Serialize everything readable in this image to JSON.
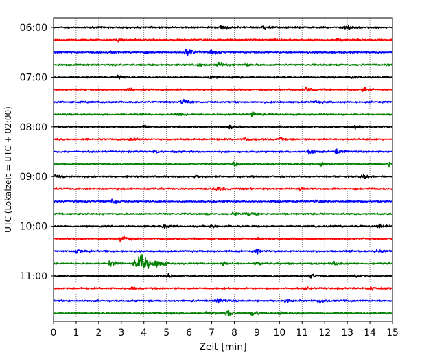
{
  "chart_data": {
    "type": "line",
    "title": "",
    "xlabel": "Zeit  [min]",
    "ylabel": "UTC (Lokalzeit = UTC + 02:00)",
    "xlim": [
      0,
      15
    ],
    "x_ticks": [
      0,
      1,
      2,
      3,
      4,
      5,
      6,
      7,
      8,
      9,
      10,
      11,
      12,
      13,
      14,
      15
    ],
    "x_tick_labels": [
      "0",
      "1",
      "2",
      "3",
      "4",
      "5",
      "6",
      "7",
      "8",
      "9",
      "10",
      "11",
      "12",
      "13",
      "14",
      "15"
    ],
    "y_tick_labels": [
      "06:00",
      "07:00",
      "08:00",
      "09:00",
      "10:00",
      "11:00"
    ],
    "y_tick_rows": [
      0,
      4,
      8,
      12,
      16,
      20
    ],
    "grid": "vertical-dotted",
    "legend": "none",
    "series_colors": [
      "#000000",
      "#ff0000",
      "#0000ff",
      "#008000"
    ],
    "traces": [
      {
        "start": "06:00",
        "color": "#000000",
        "events": [
          {
            "t": 7.4,
            "a": 1.6
          },
          {
            "t": 9.3,
            "a": 1.2
          },
          {
            "t": 12.9,
            "a": 2.0
          }
        ]
      },
      {
        "start": "06:15",
        "color": "#ff0000",
        "events": [
          {
            "t": 2.9,
            "a": 1.0
          },
          {
            "t": 9.8,
            "a": 1.0
          },
          {
            "t": 12.6,
            "a": 1.0
          }
        ]
      },
      {
        "start": "06:30",
        "color": "#0000ff",
        "events": [
          {
            "t": 2.6,
            "a": 1.0
          },
          {
            "t": 5.9,
            "a": 2.5
          },
          {
            "t": 7.0,
            "a": 1.5
          }
        ]
      },
      {
        "start": "06:45",
        "color": "#008000",
        "events": [
          {
            "t": 6.4,
            "a": 1.0
          },
          {
            "t": 7.3,
            "a": 1.5
          },
          {
            "t": 8.5,
            "a": 1.0
          }
        ]
      },
      {
        "start": "07:00",
        "color": "#000000",
        "events": [
          {
            "t": 2.9,
            "a": 1.5
          },
          {
            "t": 6.9,
            "a": 1.2
          },
          {
            "t": 13.2,
            "a": 1.0
          }
        ]
      },
      {
        "start": "07:15",
        "color": "#ff0000",
        "events": [
          {
            "t": 3.3,
            "a": 1.0
          },
          {
            "t": 11.2,
            "a": 1.5
          },
          {
            "t": 13.7,
            "a": 1.5
          }
        ]
      },
      {
        "start": "07:30",
        "color": "#0000ff",
        "events": [
          {
            "t": 5.7,
            "a": 2.0
          },
          {
            "t": 11.6,
            "a": 1.0
          }
        ]
      },
      {
        "start": "07:45",
        "color": "#008000",
        "events": [
          {
            "t": 5.5,
            "a": 1.0
          },
          {
            "t": 8.8,
            "a": 2.0
          }
        ]
      },
      {
        "start": "08:00",
        "color": "#000000",
        "events": [
          {
            "t": 4.0,
            "a": 1.3
          },
          {
            "t": 7.8,
            "a": 1.0
          },
          {
            "t": 13.3,
            "a": 1.5
          }
        ]
      },
      {
        "start": "08:15",
        "color": "#ff0000",
        "events": [
          {
            "t": 3.4,
            "a": 1.3
          },
          {
            "t": 8.5,
            "a": 1.5
          },
          {
            "t": 10.0,
            "a": 1.0
          }
        ]
      },
      {
        "start": "08:30",
        "color": "#0000ff",
        "events": [
          {
            "t": 4.5,
            "a": 1.0
          },
          {
            "t": 11.3,
            "a": 2.0
          },
          {
            "t": 12.5,
            "a": 1.5
          }
        ]
      },
      {
        "start": "08:45",
        "color": "#008000",
        "events": [
          {
            "t": 8.0,
            "a": 1.2
          },
          {
            "t": 11.8,
            "a": 1.8
          },
          {
            "t": 14.9,
            "a": 1.8
          }
        ]
      },
      {
        "start": "09:00",
        "color": "#000000",
        "events": [
          {
            "t": 0.1,
            "a": 1.5
          },
          {
            "t": 6.3,
            "a": 1.0
          },
          {
            "t": 13.7,
            "a": 1.2
          }
        ]
      },
      {
        "start": "09:15",
        "color": "#ff0000",
        "events": [
          {
            "t": 7.2,
            "a": 1.6
          },
          {
            "t": 10.9,
            "a": 1.0
          }
        ]
      },
      {
        "start": "09:30",
        "color": "#0000ff",
        "events": [
          {
            "t": 2.6,
            "a": 1.5
          },
          {
            "t": 11.6,
            "a": 1.0
          }
        ]
      },
      {
        "start": "09:45",
        "color": "#008000",
        "events": [
          {
            "t": 8.0,
            "a": 1.3
          },
          {
            "t": 8.6,
            "a": 1.0
          }
        ]
      },
      {
        "start": "10:00",
        "color": "#000000",
        "events": [
          {
            "t": 4.9,
            "a": 1.6
          },
          {
            "t": 7.0,
            "a": 1.2
          },
          {
            "t": 12.2,
            "a": 1.0
          },
          {
            "t": 14.4,
            "a": 1.8
          }
        ]
      },
      {
        "start": "10:15",
        "color": "#ff0000",
        "events": [
          {
            "t": 3.0,
            "a": 2.5
          },
          {
            "t": 9.0,
            "a": 1.0
          }
        ]
      },
      {
        "start": "10:30",
        "color": "#0000ff",
        "events": [
          {
            "t": 1.0,
            "a": 2.0
          },
          {
            "t": 9.0,
            "a": 1.5
          },
          {
            "t": 14.3,
            "a": 1.2
          }
        ]
      },
      {
        "start": "10:45",
        "color": "#008000",
        "events": [
          {
            "t": 2.5,
            "a": 2.0
          },
          {
            "t": 3.6,
            "a": 3.0
          },
          {
            "t": 3.85,
            "a": 5.5
          },
          {
            "t": 4.6,
            "a": 2.5
          },
          {
            "t": 7.5,
            "a": 1.2
          },
          {
            "t": 9.0,
            "a": 1.0
          },
          {
            "t": 12.4,
            "a": 1.2
          }
        ]
      },
      {
        "start": "11:00",
        "color": "#000000",
        "events": [
          {
            "t": 5.1,
            "a": 1.0
          },
          {
            "t": 11.4,
            "a": 1.5
          },
          {
            "t": 13.4,
            "a": 1.2
          }
        ]
      },
      {
        "start": "11:15",
        "color": "#ff0000",
        "events": [
          {
            "t": 3.4,
            "a": 1.0
          },
          {
            "t": 11.1,
            "a": 1.0
          },
          {
            "t": 14.0,
            "a": 1.8
          }
        ]
      },
      {
        "start": "11:30",
        "color": "#0000ff",
        "events": [
          {
            "t": 7.3,
            "a": 1.8
          },
          {
            "t": 10.3,
            "a": 1.5
          },
          {
            "t": 11.8,
            "a": 1.8
          }
        ]
      },
      {
        "start": "11:45",
        "color": "#008000",
        "events": [
          {
            "t": 6.8,
            "a": 1.5
          },
          {
            "t": 7.7,
            "a": 2.5
          },
          {
            "t": 8.8,
            "a": 2.2
          },
          {
            "t": 10.0,
            "a": 1.5
          }
        ]
      }
    ]
  }
}
